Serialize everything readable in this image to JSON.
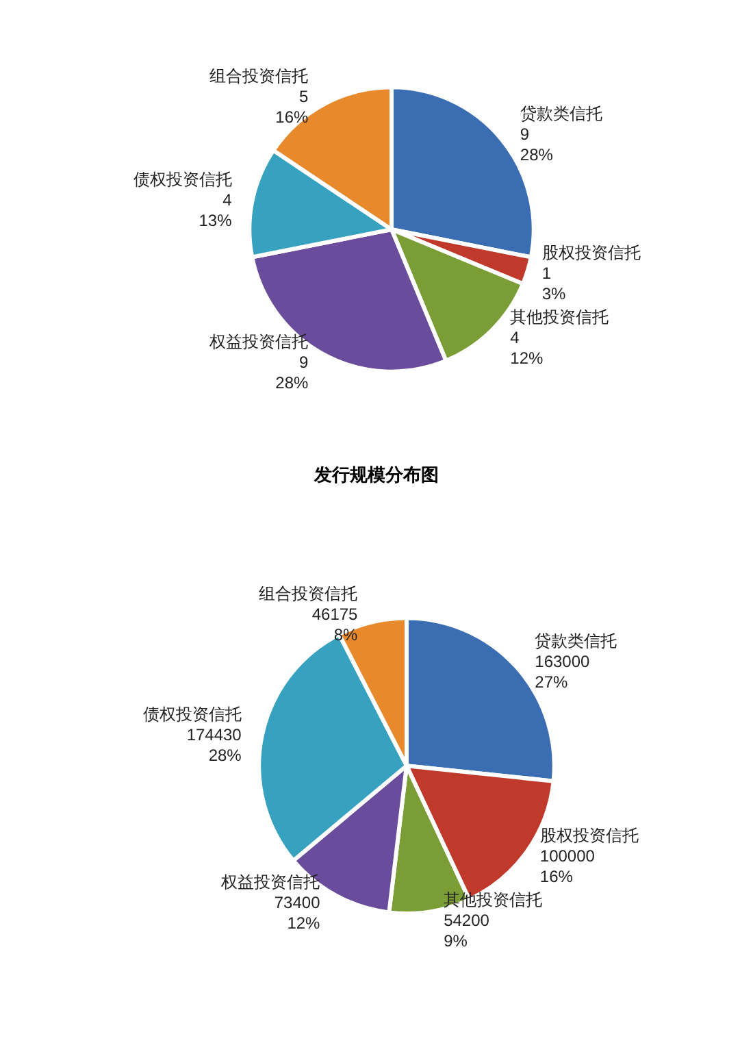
{
  "chart_data": [
    {
      "type": "pie",
      "categories": [
        "贷款类信托",
        "股权投资信托",
        "其他投资信托",
        "权益投资信托",
        "债权投资信托",
        "组合投资信托"
      ],
      "values": [
        9,
        1,
        4,
        9,
        4,
        5
      ],
      "colors": [
        "#3b6db3",
        "#c0392b",
        "#7a9e35",
        "#6a4c9c",
        "#36a2bf",
        "#e8892c"
      ],
      "value_labels": [
        "9\n28%",
        "1\n3%",
        "4\n12%",
        "9\n28%",
        "4\n13%",
        "5\n16%"
      ]
    },
    {
      "type": "pie",
      "title": "发行规模分布图",
      "categories": [
        "贷款类信托",
        "股权投资信托",
        "其他投资信托",
        "权益投资信托",
        "债权投资信托",
        "组合投资信托"
      ],
      "values": [
        163000,
        100000,
        54200,
        73400,
        174430,
        46175
      ],
      "colors": [
        "#3b6db3",
        "#c0392b",
        "#7a9e35",
        "#6a4c9c",
        "#36a2bf",
        "#e8892c"
      ],
      "value_labels": [
        "163000\n27%",
        "100000\n16%",
        "54200\n9%",
        "73400\n12%",
        "174430\n28%",
        "46175\n8%"
      ]
    }
  ]
}
